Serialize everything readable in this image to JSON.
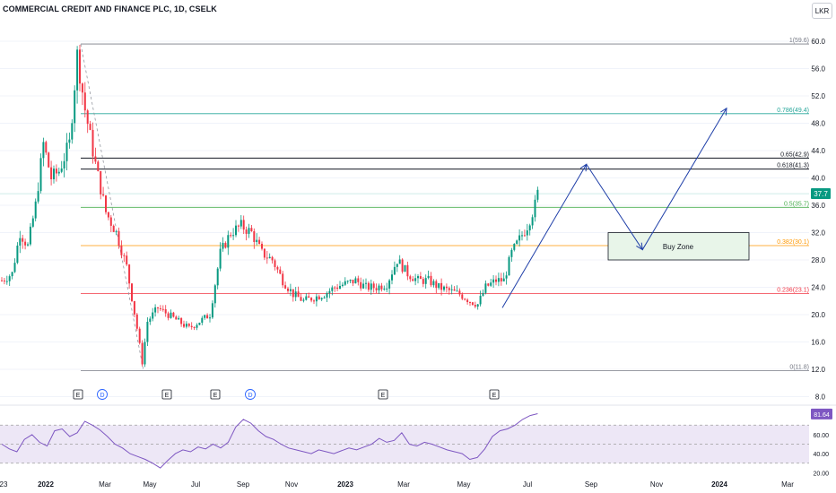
{
  "header": {
    "title": "COMMERCIAL CREDIT AND FINANCE PLC, 1D, CSELK",
    "currency": "LKR"
  },
  "colors": {
    "up": "#089981",
    "down": "#f23645",
    "rsi": "#7e57c2",
    "annotation": "#1f3fa8"
  },
  "chart_data": {
    "type": "candlestick",
    "title": "COMMERCIAL CREDIT AND FINANCE PLC, 1D, CSELK",
    "currency": "LKR",
    "last_price": "37.7",
    "x_ticks": [
      "23",
      "2022",
      "Mar",
      "May",
      "Jul",
      "Sep",
      "Nov",
      "2023",
      "Mar",
      "May",
      "Jul",
      "Sep",
      "Nov",
      "2024",
      "Mar"
    ],
    "y_ticks": [
      "60.0",
      "56.0",
      "52.0",
      "48.0",
      "44.0",
      "40.0",
      "36.0",
      "32.0",
      "28.0",
      "24.0",
      "20.0",
      "16.0",
      "12.0",
      "8.0"
    ],
    "price_path": [
      {
        "t": 0,
        "p": 25
      },
      {
        "t": 4,
        "p": 26
      },
      {
        "t": 7,
        "p": 32
      },
      {
        "t": 10,
        "p": 30
      },
      {
        "t": 13,
        "p": 36
      },
      {
        "t": 16,
        "p": 45
      },
      {
        "t": 19,
        "p": 40
      },
      {
        "t": 22,
        "p": 41
      },
      {
        "t": 26,
        "p": 45
      },
      {
        "t": 29,
        "p": 58
      },
      {
        "t": 32,
        "p": 50
      },
      {
        "t": 36,
        "p": 42
      },
      {
        "t": 40,
        "p": 35
      },
      {
        "t": 44,
        "p": 32
      },
      {
        "t": 48,
        "p": 27
      },
      {
        "t": 52,
        "p": 18
      },
      {
        "t": 54,
        "p": 13
      },
      {
        "t": 56,
        "p": 19
      },
      {
        "t": 60,
        "p": 21
      },
      {
        "t": 64,
        "p": 20
      },
      {
        "t": 68,
        "p": 19
      },
      {
        "t": 72,
        "p": 18
      },
      {
        "t": 76,
        "p": 19
      },
      {
        "t": 80,
        "p": 20
      },
      {
        "t": 84,
        "p": 29
      },
      {
        "t": 88,
        "p": 32
      },
      {
        "t": 92,
        "p": 33
      },
      {
        "t": 96,
        "p": 32
      },
      {
        "t": 100,
        "p": 29
      },
      {
        "t": 104,
        "p": 28
      },
      {
        "t": 108,
        "p": 25
      },
      {
        "t": 112,
        "p": 23
      },
      {
        "t": 116,
        "p": 22
      },
      {
        "t": 120,
        "p": 22.5
      },
      {
        "t": 124,
        "p": 23
      },
      {
        "t": 128,
        "p": 24
      },
      {
        "t": 132,
        "p": 24.5
      },
      {
        "t": 136,
        "p": 25
      },
      {
        "t": 140,
        "p": 24
      },
      {
        "t": 144,
        "p": 24
      },
      {
        "t": 148,
        "p": 24.5
      },
      {
        "t": 152,
        "p": 28
      },
      {
        "t": 156,
        "p": 26
      },
      {
        "t": 160,
        "p": 25
      },
      {
        "t": 164,
        "p": 25
      },
      {
        "t": 168,
        "p": 24
      },
      {
        "t": 172,
        "p": 23.5
      },
      {
        "t": 176,
        "p": 23
      },
      {
        "t": 180,
        "p": 22
      },
      {
        "t": 183,
        "p": 21.5
      },
      {
        "t": 186,
        "p": 24
      },
      {
        "t": 190,
        "p": 25
      },
      {
        "t": 193,
        "p": 25
      },
      {
        "t": 196,
        "p": 29
      },
      {
        "t": 199,
        "p": 31
      },
      {
        "t": 202,
        "p": 33
      },
      {
        "t": 205,
        "p": 36
      },
      {
        "t": 206,
        "p": 37.7
      }
    ],
    "fibonacci": [
      {
        "label": "1(59.6)",
        "value": 59.6,
        "color": "#787b86"
      },
      {
        "label": "0.786(49.4)",
        "value": 49.4,
        "color": "#26a69a"
      },
      {
        "label": "0.65(42.9)",
        "value": 42.9,
        "color": "#131722"
      },
      {
        "label": "0.618(41.3)",
        "value": 41.3,
        "color": "#131722"
      },
      {
        "label": "0.5(35.7)",
        "value": 35.7,
        "color": "#4caf50"
      },
      {
        "label": "0.382(30.1)",
        "value": 30.1,
        "color": "#ff9800"
      },
      {
        "label": "0.236(23.1)",
        "value": 23.1,
        "color": "#f23645"
      },
      {
        "label": "0(11.8)",
        "value": 11.8,
        "color": "#787b86"
      }
    ],
    "buy_zone": {
      "label": "Buy Zone",
      "high": 32,
      "low": 28
    },
    "projection_path": [
      {
        "date": "2023-05",
        "price": 21.0
      },
      {
        "date": "2023-08",
        "price": 42.0
      },
      {
        "date": "2023-10",
        "price": 29.5
      },
      {
        "date": "2024-01",
        "price": 50.2
      }
    ],
    "events": [
      "E",
      "D",
      "E",
      "E",
      "D",
      "E",
      "E"
    ],
    "rsi": {
      "value": "81.64",
      "y_ticks": [
        "80.00",
        "60.00",
        "40.00",
        "20.00"
      ],
      "upper": 70,
      "middle": 50,
      "lower": 30,
      "values": [
        50,
        45,
        42,
        55,
        60,
        52,
        48,
        64,
        66,
        58,
        62,
        74,
        70,
        65,
        58,
        50,
        46,
        40,
        37,
        34,
        30,
        25,
        33,
        40,
        44,
        42,
        47,
        45,
        50,
        46,
        52,
        68,
        76,
        72,
        64,
        58,
        55,
        50,
        46,
        44,
        42,
        40,
        44,
        42,
        40,
        43,
        46,
        44,
        47,
        50,
        56,
        52,
        54,
        62,
        50,
        48,
        52,
        50,
        47,
        44,
        42,
        40,
        34,
        36,
        45,
        58,
        64,
        66,
        70,
        76,
        80,
        82
      ]
    }
  }
}
